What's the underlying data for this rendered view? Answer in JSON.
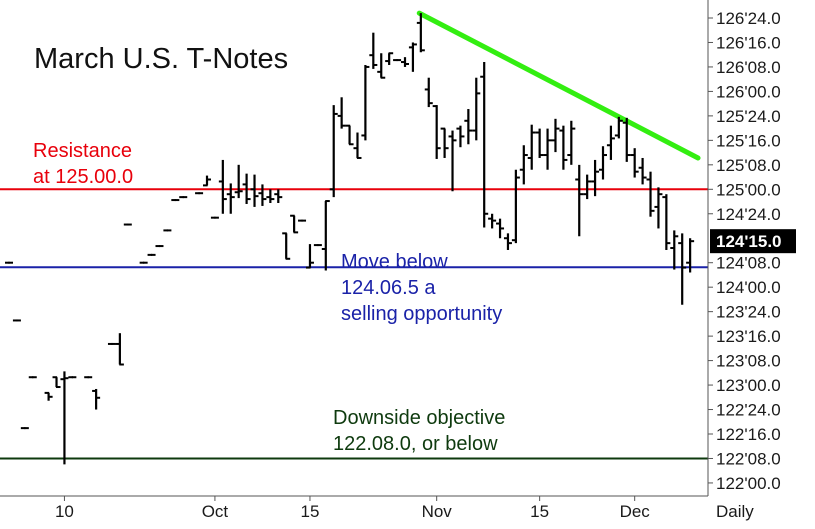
{
  "chart_data": {
    "type": "ohlc",
    "title": "March U.S. T-Notes",
    "period_label": "Daily",
    "grid": false,
    "legend": "none",
    "y_axis": {
      "side": "right",
      "min_ticks": 121.96875,
      "max_ticks": 126.75,
      "ticks": [
        {
          "label": "126'24.0",
          "value": 126.75
        },
        {
          "label": "126'16.0",
          "value": 126.5
        },
        {
          "label": "126'08.0",
          "value": 126.25
        },
        {
          "label": "126'00.0",
          "value": 126.0
        },
        {
          "label": "125'24.0",
          "value": 125.75
        },
        {
          "label": "125'16.0",
          "value": 125.5
        },
        {
          "label": "125'08.0",
          "value": 125.25
        },
        {
          "label": "125'00.0",
          "value": 125.0
        },
        {
          "label": "124'24.0",
          "value": 124.75
        },
        {
          "label": "124'08.0",
          "value": 124.25
        },
        {
          "label": "124'00.0",
          "value": 124.0
        },
        {
          "label": "123'24.0",
          "value": 123.75
        },
        {
          "label": "123'16.0",
          "value": 123.5
        },
        {
          "label": "123'08.0",
          "value": 123.25
        },
        {
          "label": "123'00.0",
          "value": 123.0
        },
        {
          "label": "122'24.0",
          "value": 122.75
        },
        {
          "label": "122'16.0",
          "value": 122.5
        },
        {
          "label": "122'08.0",
          "value": 122.25
        },
        {
          "label": "122'00.0",
          "value": 122.0
        }
      ]
    },
    "last_price": {
      "label": "124'15.0",
      "value": 124.47
    },
    "x_axis": {
      "num_bars": 87,
      "ticks": [
        {
          "label": "10",
          "bar": 7
        },
        {
          "label": "Oct",
          "bar": 26
        },
        {
          "label": "15",
          "bar": 38
        },
        {
          "label": "Nov",
          "bar": 54
        },
        {
          "label": "15",
          "bar": 67
        },
        {
          "label": "Dec",
          "bar": 79
        }
      ]
    },
    "horizontal_lines": [
      {
        "name": "resistance",
        "value": 125.0,
        "color": "#e8000b"
      },
      {
        "name": "support",
        "value": 124.203,
        "color": "#1a22a8"
      },
      {
        "name": "objective",
        "value": 122.25,
        "color": "#0e3a0e"
      }
    ],
    "trendline": {
      "color": "#33ee11",
      "from": {
        "bar": 51.8,
        "value": 126.8
      },
      "to": {
        "bar": 87,
        "value": 125.32
      }
    },
    "annotations": [
      {
        "id": "resistance",
        "lines": [
          "Resistance",
          "at 125.00.0"
        ],
        "color": "#e8000b"
      },
      {
        "id": "move-below",
        "lines": [
          "Move below",
          "124.06.5 a",
          "selling opportunity"
        ],
        "color": "#1a22a8"
      },
      {
        "id": "objective",
        "lines": [
          "Downside objective",
          "122.08.0, or below"
        ],
        "color": "#0e3a0e"
      }
    ],
    "series": [
      {
        "name": "",
        "color": "#000000",
        "ohlc": [
          [
            0,
            124.25,
            124.25,
            124.25,
            124.25
          ],
          [
            1,
            123.66,
            123.66,
            123.66,
            123.66
          ],
          [
            2,
            122.56,
            122.56,
            122.56,
            122.56
          ],
          [
            3,
            123.08,
            123.08,
            123.08,
            123.08
          ],
          [
            5,
            122.92,
            122.92,
            122.84,
            122.88
          ],
          [
            6,
            123.08,
            123.08,
            122.98,
            122.98
          ],
          [
            7,
            123.06,
            123.14,
            122.19,
            123.07
          ],
          [
            8,
            123.08,
            123.08,
            123.08,
            123.08
          ],
          [
            10,
            123.08,
            123.08,
            123.08,
            123.08
          ],
          [
            11,
            122.94,
            122.96,
            122.75,
            122.87
          ],
          [
            13,
            123.42,
            123.42,
            123.42,
            123.42
          ],
          [
            14,
            123.42,
            123.53,
            123.21,
            123.21
          ],
          [
            15,
            124.64,
            124.64,
            124.64,
            124.64
          ],
          [
            17,
            124.25,
            124.25,
            124.25,
            124.25
          ],
          [
            18,
            124.33,
            124.33,
            124.33,
            124.33
          ],
          [
            19,
            124.42,
            124.42,
            124.42,
            124.42
          ],
          [
            20,
            124.58,
            124.58,
            124.58,
            124.58
          ],
          [
            21,
            124.89,
            124.89,
            124.89,
            124.89
          ],
          [
            22,
            124.92,
            124.92,
            124.92,
            124.92
          ],
          [
            24,
            124.96,
            124.96,
            124.96,
            124.96
          ],
          [
            25,
            125.04,
            125.14,
            125.04,
            125.1
          ],
          [
            26,
            124.71,
            124.71,
            124.71,
            124.71
          ],
          [
            27,
            125.08,
            125.3,
            124.75,
            124.9
          ],
          [
            28,
            124.95,
            125.06,
            124.75,
            124.92
          ],
          [
            29,
            124.97,
            125.25,
            124.91,
            124.98
          ],
          [
            30,
            125.05,
            125.16,
            124.85,
            124.9
          ],
          [
            31,
            125.0,
            125.15,
            124.82,
            124.93
          ],
          [
            32,
            124.96,
            125.05,
            124.83,
            124.9
          ],
          [
            33,
            124.92,
            125.0,
            124.86,
            124.9
          ],
          [
            34,
            124.95,
            125.0,
            124.86,
            124.92
          ],
          [
            35,
            124.55,
            124.55,
            124.29,
            124.29
          ],
          [
            36,
            124.73,
            124.73,
            124.56,
            124.56
          ],
          [
            37,
            124.68,
            124.68,
            124.68,
            124.68
          ],
          [
            38,
            124.2,
            124.44,
            124.2,
            124.25
          ],
          [
            39,
            124.43,
            124.43,
            124.43,
            124.43
          ],
          [
            40,
            124.39,
            124.88,
            124.17,
            124.88
          ],
          [
            41,
            125.0,
            125.86,
            124.92,
            125.77
          ],
          [
            42,
            125.75,
            125.94,
            125.62,
            125.65
          ],
          [
            43,
            125.65,
            125.65,
            125.46,
            125.46
          ],
          [
            44,
            125.42,
            125.58,
            125.32,
            125.32
          ],
          [
            45,
            125.55,
            126.27,
            125.5,
            126.25
          ],
          [
            46,
            126.37,
            126.6,
            126.23,
            126.27
          ],
          [
            47,
            126.2,
            126.39,
            126.14,
            126.14
          ],
          [
            48,
            126.31,
            126.39,
            126.27,
            126.39
          ],
          [
            49,
            126.32,
            126.32,
            126.32,
            126.32
          ],
          [
            50,
            126.3,
            126.35,
            126.25,
            126.28
          ],
          [
            51,
            126.45,
            126.5,
            126.2,
            126.48
          ],
          [
            52,
            126.7,
            126.8,
            126.4,
            126.42
          ],
          [
            53,
            126.02,
            126.14,
            125.84,
            125.88
          ],
          [
            54,
            125.85,
            125.86,
            125.31,
            125.42
          ],
          [
            55,
            125.62,
            125.62,
            125.32,
            125.42
          ],
          [
            56,
            125.54,
            125.6,
            124.98,
            125.5
          ],
          [
            57,
            125.62,
            125.65,
            125.43,
            125.54
          ],
          [
            58,
            125.7,
            125.82,
            125.46,
            125.6
          ],
          [
            59,
            125.6,
            126.14,
            125.5,
            125.98
          ],
          [
            60,
            126.15,
            126.3,
            124.61,
            124.75
          ],
          [
            61,
            124.7,
            124.75,
            124.6,
            124.68
          ],
          [
            62,
            124.65,
            124.7,
            124.5,
            124.6
          ],
          [
            63,
            124.5,
            124.55,
            124.38,
            124.45
          ],
          [
            64,
            124.48,
            125.2,
            124.45,
            125.12
          ],
          [
            65,
            125.2,
            125.45,
            125.05,
            125.35
          ],
          [
            66,
            125.32,
            125.66,
            125.2,
            125.58
          ],
          [
            67,
            125.58,
            125.62,
            125.32,
            125.35
          ],
          [
            68,
            125.35,
            125.62,
            125.2,
            125.5
          ],
          [
            69,
            125.5,
            125.72,
            125.38,
            125.62
          ],
          [
            70,
            125.6,
            125.65,
            125.2,
            125.3
          ],
          [
            71,
            125.35,
            125.7,
            125.25,
            125.62
          ],
          [
            72,
            125.1,
            125.25,
            124.52,
            124.95
          ],
          [
            73,
            124.95,
            125.15,
            124.9,
            125.08
          ],
          [
            74,
            125.08,
            125.3,
            124.93,
            125.18
          ],
          [
            75,
            125.2,
            125.44,
            125.1,
            125.35
          ],
          [
            76,
            125.45,
            125.65,
            125.3,
            125.52
          ],
          [
            77,
            125.55,
            125.74,
            125.52,
            125.7
          ],
          [
            78,
            125.68,
            125.73,
            125.28,
            125.35
          ],
          [
            79,
            125.35,
            125.42,
            125.12,
            125.18
          ],
          [
            80,
            125.22,
            125.32,
            125.05,
            125.12
          ],
          [
            81,
            125.1,
            125.18,
            124.72,
            124.78
          ],
          [
            82,
            124.82,
            125.02,
            124.6,
            124.95
          ],
          [
            83,
            124.92,
            124.95,
            124.38,
            124.45
          ],
          [
            84,
            124.4,
            124.58,
            124.18,
            124.52
          ],
          [
            85,
            124.45,
            124.55,
            123.82,
            124.2
          ],
          [
            86,
            124.25,
            124.5,
            124.15,
            124.47
          ]
        ]
      }
    ]
  }
}
